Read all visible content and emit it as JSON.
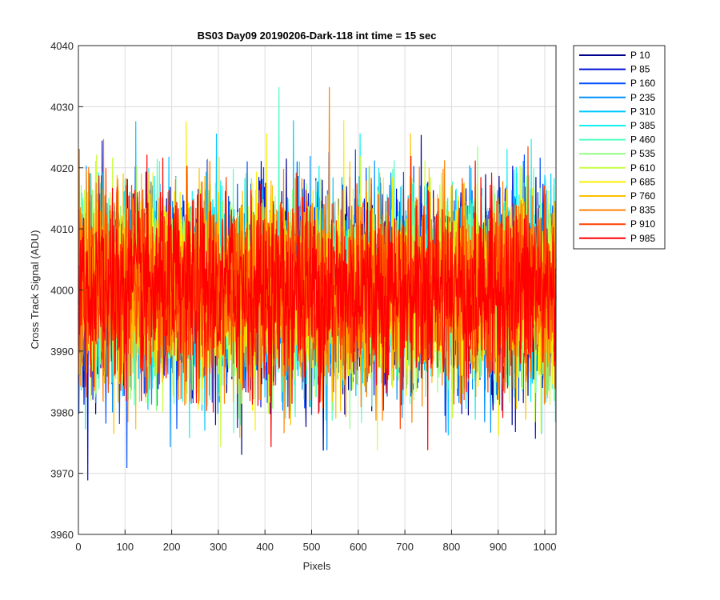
{
  "chart_data": {
    "type": "line",
    "title": "BS03 Day09 20190206-Dark-118 int time = 15 sec",
    "xlabel": "Pixels",
    "ylabel": "Cross Track Signal (ADU)",
    "xlim": [
      0,
      1024
    ],
    "ylim": [
      3960,
      4040
    ],
    "xticks": [
      0,
      100,
      200,
      300,
      400,
      500,
      600,
      700,
      800,
      900,
      1000
    ],
    "yticks": [
      3960,
      3970,
      3980,
      3990,
      4000,
      4010,
      4020,
      4030,
      4040
    ],
    "grid": true,
    "legend_position": "outside-top-right",
    "series_stats": {
      "mean": 4000,
      "typical_range": [
        3985,
        4016
      ],
      "extreme_range": [
        3968,
        4035
      ]
    },
    "series": [
      {
        "name": "P 10",
        "color": "#00008f"
      },
      {
        "name": "P 85",
        "color": "#0010d8"
      },
      {
        "name": "P 160",
        "color": "#0050ff"
      },
      {
        "name": "P 235",
        "color": "#0090ff"
      },
      {
        "name": "P 310",
        "color": "#00c8ff"
      },
      {
        "name": "P 385",
        "color": "#10f0f0"
      },
      {
        "name": "P 460",
        "color": "#50ffc0"
      },
      {
        "name": "P 535",
        "color": "#90ff80"
      },
      {
        "name": "P 610",
        "color": "#c8ff40"
      },
      {
        "name": "P 685",
        "color": "#f8f000"
      },
      {
        "name": "P 760",
        "color": "#ffc000"
      },
      {
        "name": "P 835",
        "color": "#ff8000"
      },
      {
        "name": "P 910",
        "color": "#ff4000"
      },
      {
        "name": "P 985",
        "color": "#ff0000"
      }
    ]
  }
}
